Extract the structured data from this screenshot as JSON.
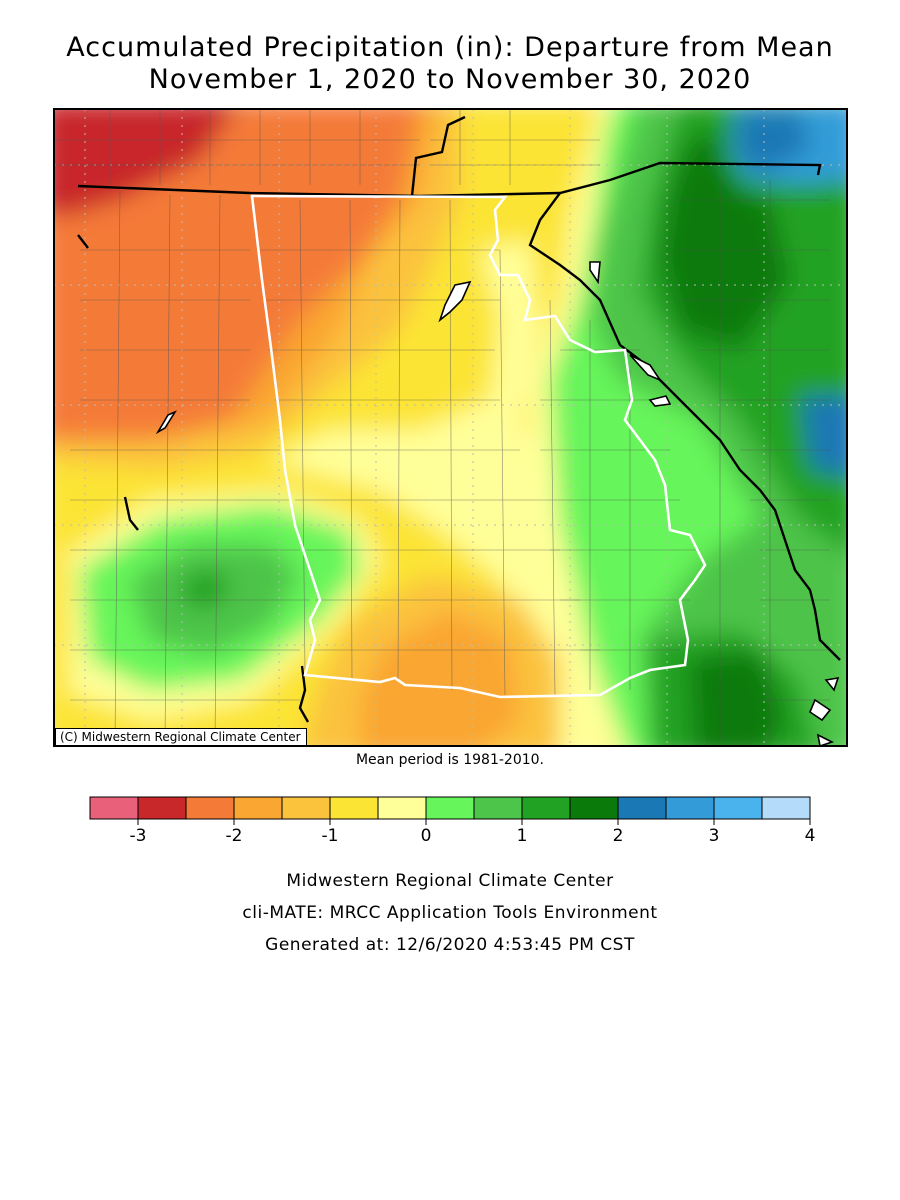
{
  "title_line1": "Accumulated Precipitation (in): Departure from Mean",
  "title_line2": "November 1, 2020 to November 30, 2020",
  "credit": "(C) Midwestern Regional Climate Center",
  "mean_note": "Mean period is 1981-2010.",
  "legend": {
    "colors": [
      "#e8607a",
      "#c8282a",
      "#f47a38",
      "#faa632",
      "#fbc23c",
      "#fce435",
      "#ffff99",
      "#66f55a",
      "#4dc44a",
      "#22a222",
      "#0a7a0a",
      "#1a78b4",
      "#339cd8",
      "#4ab2ec",
      "#b4dcfa"
    ],
    "ticks": [
      {
        "label": "-3",
        "value": -3
      },
      {
        "label": "-2",
        "value": -2
      },
      {
        "label": "-1",
        "value": -1
      },
      {
        "label": "0",
        "value": 0
      },
      {
        "label": "1",
        "value": 1
      },
      {
        "label": "2",
        "value": 2
      },
      {
        "label": "3",
        "value": 3
      },
      {
        "label": "4",
        "value": 4
      }
    ],
    "min": -3.5,
    "max": 4
  },
  "footer_line1": "Midwestern Regional Climate Center",
  "footer_line2": "cli-MATE: MRCC Application Tools Environment",
  "footer_line3": "Generated at: 12/6/2020 4:53:45 PM CST"
}
